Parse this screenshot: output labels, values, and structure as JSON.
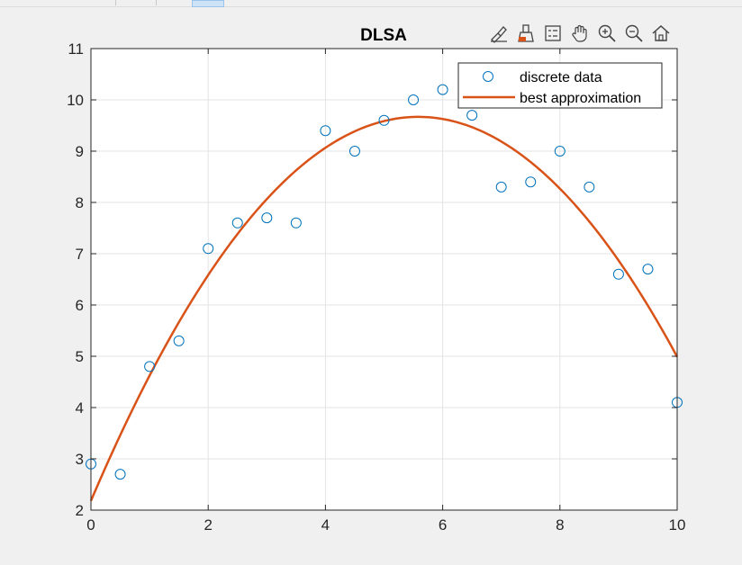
{
  "figure": {
    "background": "#f0f0f0",
    "axes_background": "#ffffff",
    "grid_color": "#e3e3e3",
    "axis_color": "#262626"
  },
  "toolbar": {
    "items": [
      "brush-edit-icon",
      "data-brush-icon",
      "legend-toggle-icon",
      "pan-icon",
      "zoom-in-icon",
      "zoom-out-icon",
      "home-icon"
    ]
  },
  "chart_data": {
    "type": "scatter",
    "title": "DLSA",
    "xlabel": "",
    "ylabel": "",
    "xlim": [
      0,
      10
    ],
    "ylim": [
      2,
      11
    ],
    "xticks": [
      0,
      2,
      4,
      6,
      8,
      10
    ],
    "yticks": [
      2,
      3,
      4,
      5,
      6,
      7,
      8,
      9,
      10,
      11
    ],
    "grid": true,
    "legend_location": "top-right",
    "series": [
      {
        "name": "discrete data",
        "type": "scatter",
        "marker": "circle",
        "color": "#0072bd",
        "x": [
          0,
          0.5,
          1,
          1.5,
          2,
          2.5,
          3,
          3.5,
          4,
          4.5,
          5,
          5.5,
          6,
          6.5,
          7,
          7.5,
          8,
          8.5,
          9,
          9.5,
          10
        ],
        "y": [
          2.9,
          2.7,
          4.8,
          5.3,
          7.1,
          7.6,
          7.7,
          7.6,
          9.4,
          9.0,
          9.6,
          10.0,
          10.2,
          9.7,
          8.3,
          8.4,
          9.0,
          8.3,
          6.6,
          6.7,
          4.1
        ]
      },
      {
        "name": "best approximation",
        "type": "line",
        "color": "#d95319",
        "x": [
          0,
          0.5,
          1,
          1.5,
          2,
          2.5,
          3,
          3.5,
          4,
          4.5,
          5,
          5.5,
          6,
          6.5,
          7,
          7.5,
          8,
          8.5,
          9,
          9.5,
          10
        ],
        "y": [
          2.2,
          3.44,
          4.58,
          5.62,
          6.56,
          7.4,
          8.14,
          8.78,
          9.04,
          9.36,
          9.6,
          9.65,
          9.62,
          9.45,
          9.15,
          8.75,
          8.25,
          7.62,
          6.85,
          6.0,
          5.05
        ]
      }
    ]
  }
}
